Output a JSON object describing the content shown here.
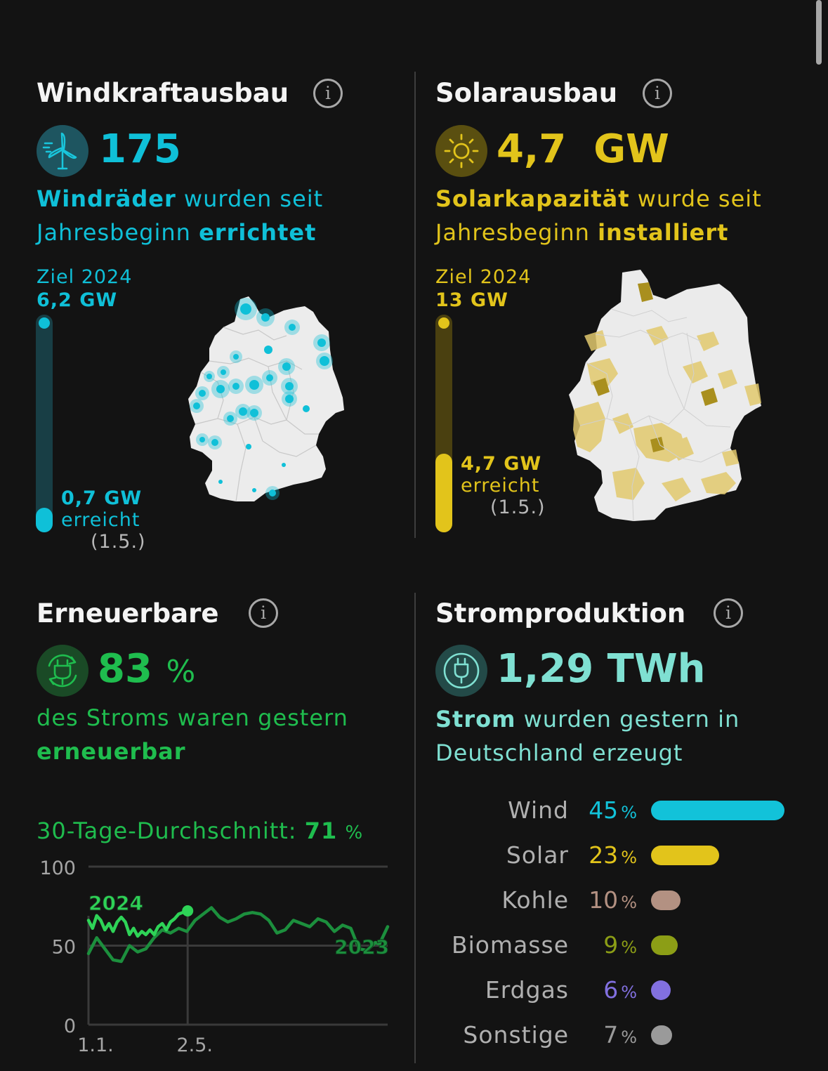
{
  "wind": {
    "title": "Windkraftausbau",
    "value": "175",
    "desc_bold1": "Windräder",
    "desc_rest1": " wurden seit",
    "desc_rest2": "Jahresbeginn ",
    "desc_bold2": "errichtet",
    "goal_label": "Ziel 2024",
    "goal_value": "6,2 GW",
    "reached_value": "0,7 GW",
    "reached_label": "erreicht",
    "reached_date": "(1.5.)",
    "progress": 0.113,
    "color": "#0fc0d8",
    "icon": "wind-turbine-icon"
  },
  "solar": {
    "title": "Solarausbau",
    "value": "4,7  GW",
    "desc_bold1": "Solarkapazität",
    "desc_rest1": " wurde seit",
    "desc_rest2": "Jahresbeginn ",
    "desc_bold2": "installiert",
    "goal_label": "Ziel 2024",
    "goal_value": "13 GW",
    "reached_value": "4,7 GW",
    "reached_label": "erreicht",
    "reached_date": "(1.5.)",
    "progress": 0.36,
    "color": "#e2c41b",
    "icon": "sun-icon"
  },
  "renew": {
    "title": "Erneuerbare",
    "value": "83",
    "unit": "%",
    "desc1": "des Stroms waren gestern",
    "desc_bold": "erneuerbar",
    "avg_label": "30-Tage-Durchschnitt: ",
    "avg_value": "71",
    "avg_unit": "%",
    "color": "#1fbd4e",
    "icon": "recycle-plug-icon"
  },
  "power": {
    "title": "Stromproduktion",
    "value": "1,29 TWh",
    "desc_bold": "Strom",
    "desc_rest1": " wurden gestern in",
    "desc_rest2": "Deutschland erzeugt",
    "color": "#7fe0d2",
    "icon": "plug-icon"
  },
  "chart_data": {
    "type": "line",
    "title": "",
    "xlabel": "",
    "ylabel": "",
    "ylim": [
      0,
      100
    ],
    "y_ticks": [
      "100",
      "50",
      "0"
    ],
    "x_ticks": [
      "1.1.",
      "2.5."
    ],
    "x_tick_days": [
      0,
      121
    ],
    "grid": true,
    "series": [
      {
        "name": "2024",
        "color": "#2ed357",
        "x": [
          0,
          5,
          10,
          15,
          20,
          25,
          30,
          35,
          40,
          45,
          50,
          55,
          60,
          65,
          70,
          75,
          80,
          85,
          90,
          95,
          100,
          105,
          110,
          115,
          121
        ],
        "y": [
          66,
          61,
          69,
          66,
          60,
          64,
          59,
          65,
          68,
          65,
          57,
          61,
          56,
          59,
          57,
          60,
          57,
          62,
          64,
          60,
          65,
          67,
          70,
          71,
          72
        ]
      },
      {
        "name": "2023",
        "color": "#1c8f3d",
        "x": [
          0,
          10,
          20,
          30,
          40,
          50,
          60,
          70,
          80,
          90,
          100,
          110,
          120,
          130,
          140,
          150,
          160,
          170,
          180,
          190,
          200,
          210,
          220,
          230,
          240,
          250,
          260,
          270,
          280,
          290,
          300,
          310,
          320,
          330,
          340,
          350,
          355,
          365
        ],
        "y": [
          45,
          55,
          48,
          41,
          40,
          50,
          46,
          48,
          55,
          60,
          58,
          61,
          59,
          66,
          70,
          74,
          68,
          65,
          67,
          70,
          71,
          70,
          66,
          58,
          60,
          66,
          64,
          62,
          67,
          65,
          59,
          63,
          61,
          48,
          47,
          52,
          51,
          62
        ]
      }
    ]
  },
  "sources": [
    {
      "label": "Wind",
      "value": "45",
      "unit": "%",
      "share": 45,
      "color": "#12c2d9"
    },
    {
      "label": "Solar",
      "value": "23",
      "unit": "%",
      "share": 23,
      "color": "#e2c41b"
    },
    {
      "label": "Kohle",
      "value": "10",
      "unit": "%",
      "share": 10,
      "color": "#b39182"
    },
    {
      "label": "Biomasse",
      "value": "9",
      "unit": "%",
      "share": 9,
      "color": "#8c9e16"
    },
    {
      "label": "Erdgas",
      "value": "6",
      "unit": "%",
      "share": 6,
      "color": "#8270e0"
    },
    {
      "label": "Sonstige",
      "value": "7",
      "unit": "%",
      "share": 7,
      "color": "#9a9a9a"
    }
  ]
}
